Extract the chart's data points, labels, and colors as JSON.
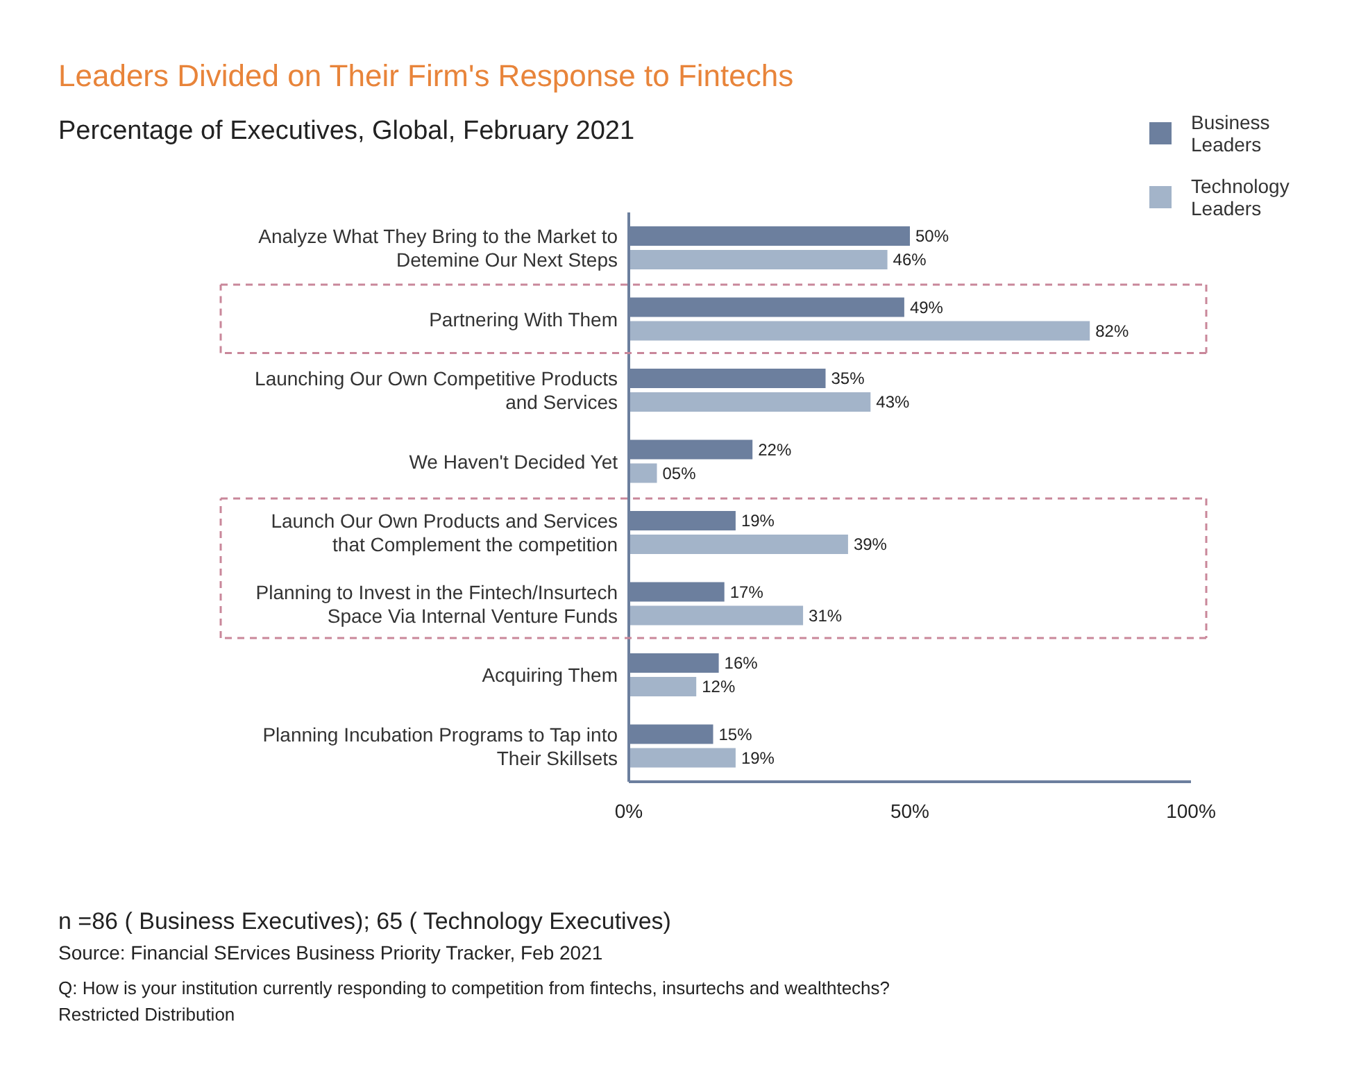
{
  "chart_data": {
    "type": "bar",
    "orientation": "horizontal",
    "title": "Leaders Divided on Their Firm's Response to Fintechs",
    "subtitle": "Percentage of Executives, Global, February 2021",
    "categories": [
      "Analyze What They Bring to the Market to Detemine Our Next Steps",
      "Partnering With Them",
      "Launching Our Own Competitive Products and Services",
      "We Haven't Decided Yet",
      "Launch Our Own Products and Services that Complement the competition",
      "Planning to Invest in the Fintech/Insurtech Space Via Internal Venture Funds",
      "Acquiring Them",
      "Planning Incubation Programs to Tap into Their Skillsets"
    ],
    "series": [
      {
        "name": "Business Leaders",
        "color": "#6c7f9e",
        "values": [
          50,
          49,
          35,
          22,
          19,
          17,
          16,
          15
        ],
        "value_labels": [
          "50%",
          "49%",
          "35%",
          "22%",
          "19%",
          "17%",
          "16%",
          "15%"
        ]
      },
      {
        "name": "Technology Leaders",
        "color": "#a3b4c9",
        "values": [
          46,
          82,
          43,
          5,
          39,
          31,
          12,
          19
        ],
        "value_labels": [
          "46%",
          "82%",
          "43%",
          "05%",
          "39%",
          "31%",
          "12%",
          "19%"
        ]
      }
    ],
    "xlim": [
      0,
      100
    ],
    "xticks": [
      {
        "value": 0,
        "label": "0%"
      },
      {
        "value": 50,
        "label": "50%"
      },
      {
        "value": 100,
        "label": "100%"
      }
    ],
    "grid": false,
    "legend": "top right",
    "annotations": [
      "n =86 ( Business Executives); 65 ( Technology Executives)",
      "Source: Financial SErvices Business Priority Tracker, Feb 2021",
      "Q: How is your institution currently responding to competition from fintechs, insurtechs and wealthtechs?",
      "Restricted Distribution"
    ]
  }
}
